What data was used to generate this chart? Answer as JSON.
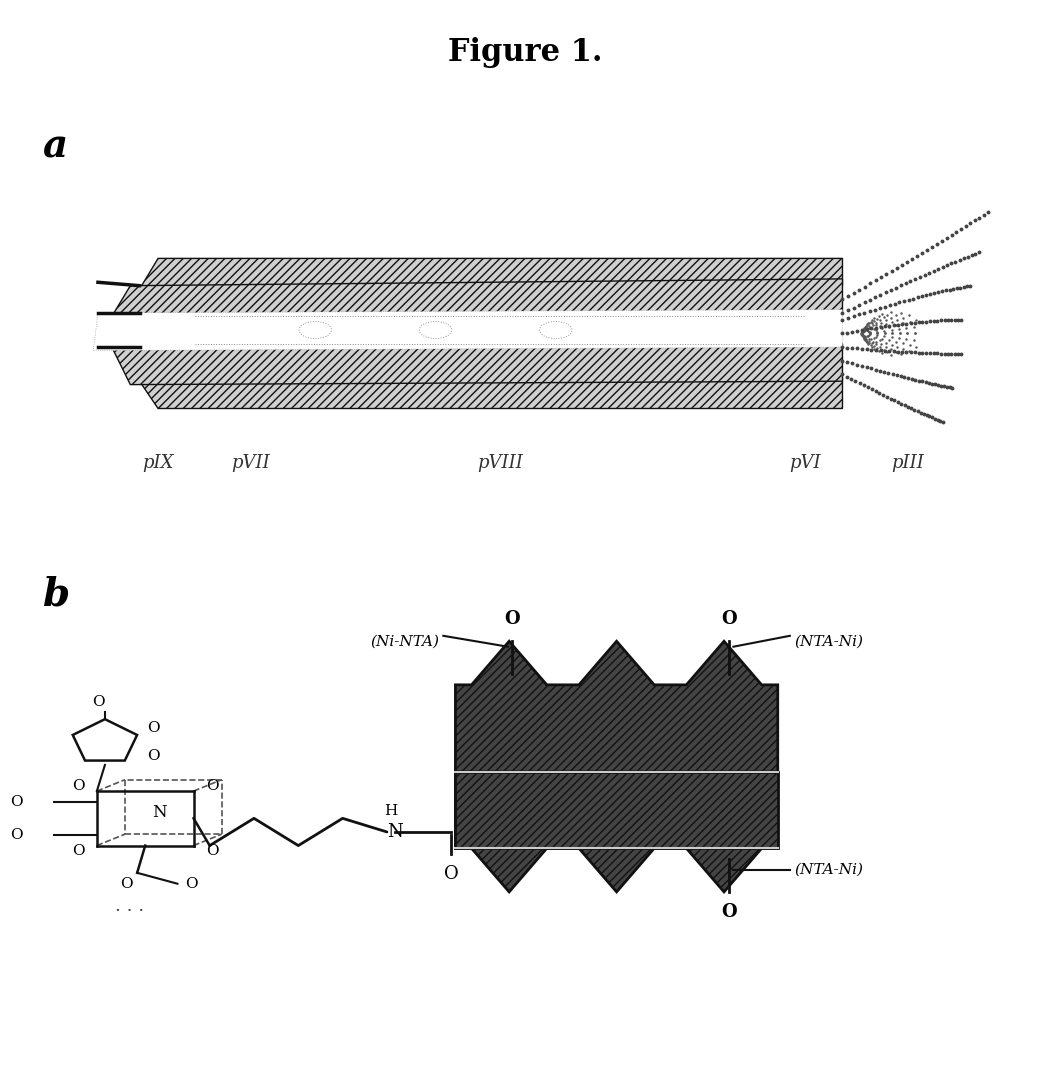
{
  "title": "Figure 1.",
  "title_fontsize": 22,
  "title_fontweight": "bold",
  "background_color": "#ffffff",
  "panel_a_label": "a",
  "panel_b_label": "b",
  "label_fontsize_a": 14,
  "fig_width": 10.51,
  "fig_height": 10.66,
  "hatch_pattern_body": "////",
  "hatch_pattern_phage": "////",
  "body_facecolor": "#d8d8d8",
  "body_edgecolor": "#222222",
  "phage_b_facecolor": "#555555",
  "phage_b_edgecolor": "#111111"
}
